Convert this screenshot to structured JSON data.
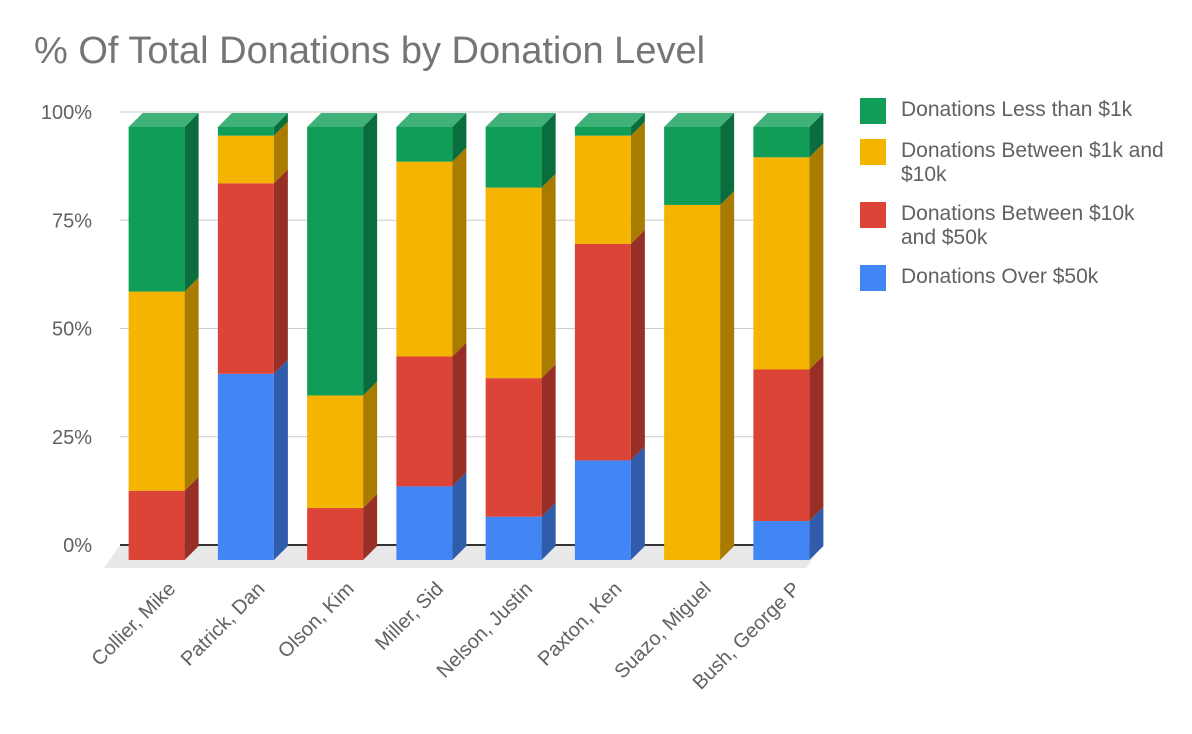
{
  "chart_data": {
    "type": "bar",
    "stacked": true,
    "three_d": true,
    "title": "% Of Total Donations by Donation Level",
    "xlabel": "",
    "ylabel": "",
    "ylim": [
      0,
      100
    ],
    "y_ticks": [
      "0%",
      "25%",
      "50%",
      "75%",
      "100%"
    ],
    "grid": true,
    "legend_position": "right",
    "categories": [
      "Collier, Mike",
      "Patrick, Dan",
      "Olson, Kim",
      "Miller, Sid",
      "Nelson, Justin",
      "Paxton, Ken",
      "Suazo, Miguel",
      "Bush, George P"
    ],
    "series": [
      {
        "name": "Donations Over $50k",
        "color": "#4285f4",
        "side_color": "#2f5cab",
        "values": [
          0,
          43,
          0,
          17,
          10,
          23,
          0,
          9
        ]
      },
      {
        "name": "Donations Between $10k and $50k",
        "color": "#db4437",
        "side_color": "#982f26",
        "values": [
          16,
          44,
          12,
          30,
          32,
          50,
          0,
          35
        ]
      },
      {
        "name": "Donations Between $1k and $10k",
        "color": "#f4b400",
        "side_color": "#a97c00",
        "values": [
          46,
          11,
          26,
          45,
          44,
          25,
          82,
          49
        ]
      },
      {
        "name": "Donations Less than $1k",
        "color": "#0f9d58",
        "side_color": "#0a6d3d",
        "values": [
          38,
          2,
          62,
          8,
          14,
          2,
          18,
          7
        ]
      }
    ],
    "legend_order": [
      3,
      2,
      1,
      0
    ]
  }
}
